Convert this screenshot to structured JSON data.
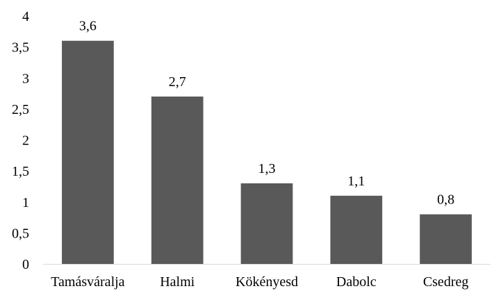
{
  "chart_data": {
    "type": "bar",
    "categories": [
      "Tamásváralja",
      "Halmi",
      "Kökényesd",
      "Dabolc",
      "Csedreg"
    ],
    "values": [
      3.6,
      2.7,
      1.3,
      1.1,
      0.8
    ],
    "data_labels": [
      "3,6",
      "2,7",
      "1,3",
      "1,1",
      "0,8"
    ],
    "title": "",
    "xlabel": "",
    "ylabel": "",
    "ylim": [
      0,
      4
    ],
    "yticks": [
      0,
      0.5,
      1,
      1.5,
      2,
      2.5,
      3,
      3.5,
      4
    ],
    "ytick_labels": [
      "0",
      "0,5",
      "1",
      "1,5",
      "2",
      "2,5",
      "3",
      "3,5",
      "4"
    ],
    "grid": false,
    "legend": "none",
    "bar_color": "#595959",
    "axis_color": "#d9d9d9"
  }
}
